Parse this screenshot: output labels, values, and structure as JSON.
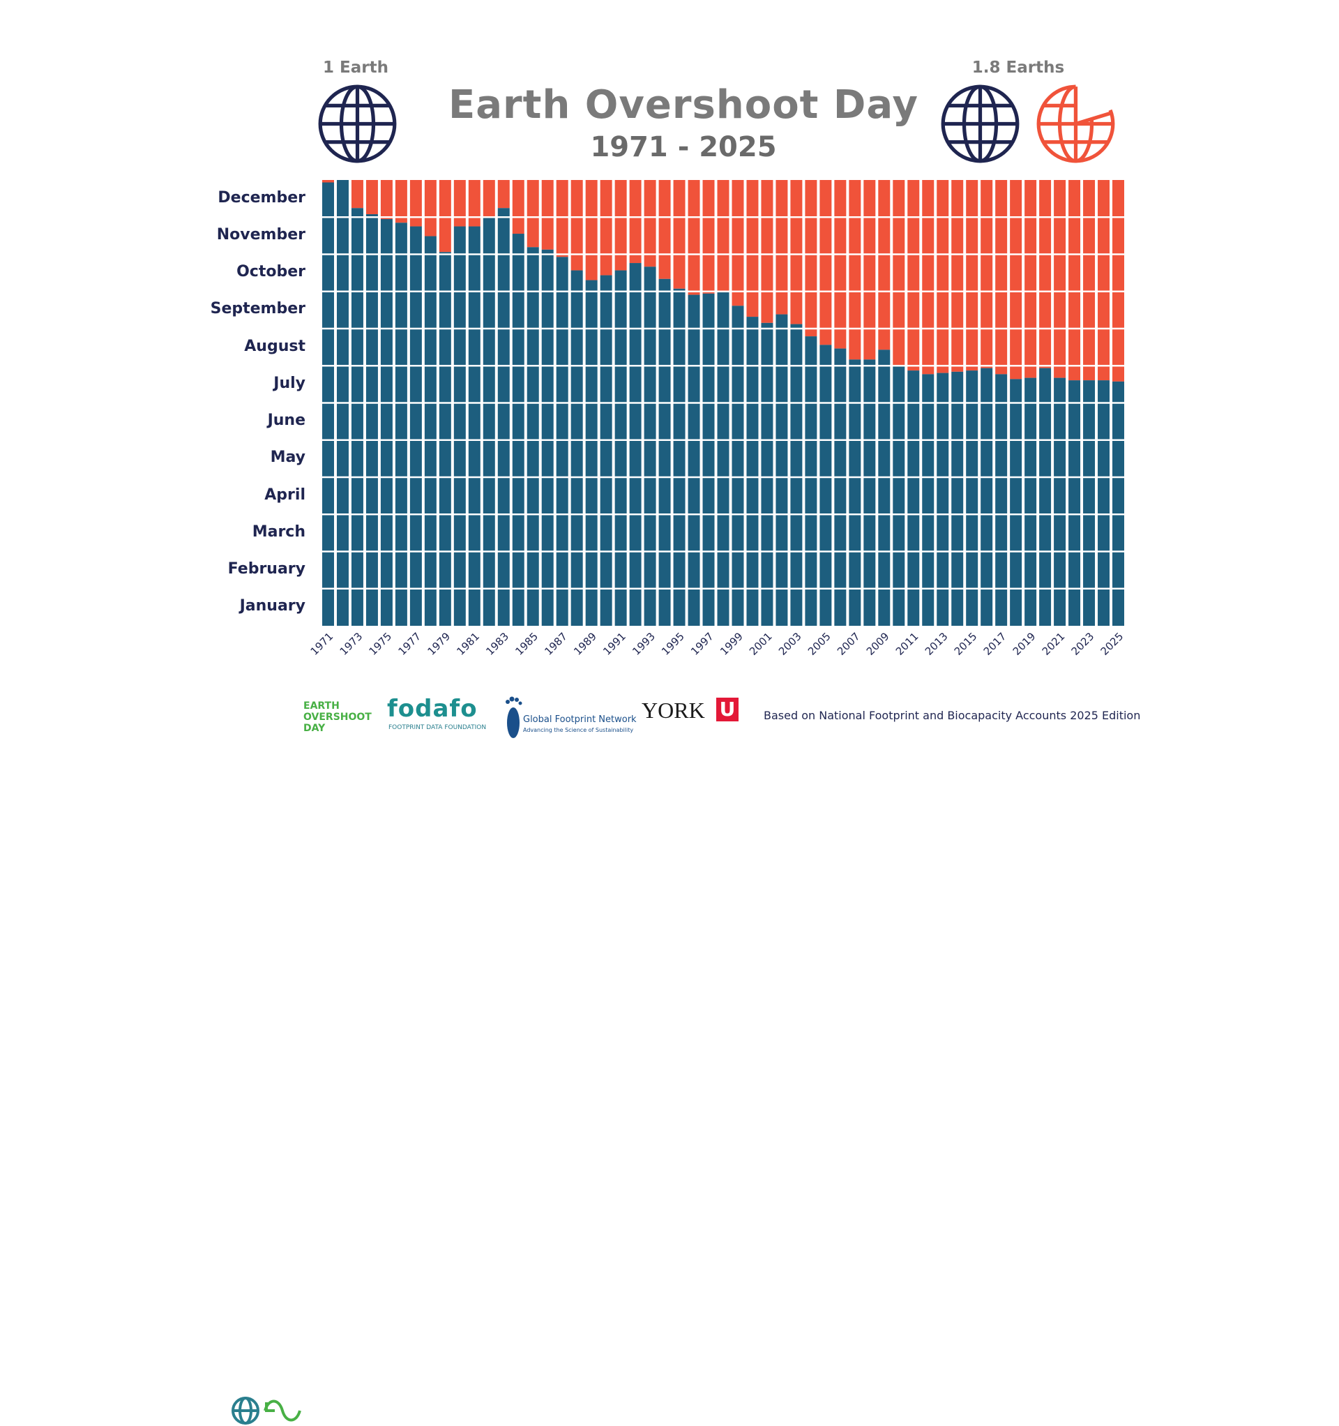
{
  "header": {
    "title": "Earth Overshoot Day",
    "subtitle": "1971 - 2025",
    "left_label": "1 Earth",
    "right_label": "1.8 Earths"
  },
  "colors": {
    "before": "#1d5e7e",
    "after": "#f0533a",
    "months": "#1f2550",
    "globe_navy": "#1f2550",
    "globe_orange": "#f0533a",
    "title_gray": "#7a7a7a"
  },
  "icons": [
    "globe-icon",
    "partial-globe-icon",
    "footprint-icon"
  ],
  "chart_data": {
    "type": "bar",
    "stacked": true,
    "title": "Earth Overshoot Day",
    "subtitle": "1971 - 2025",
    "y_axis_labels": [
      "January",
      "February",
      "March",
      "April",
      "May",
      "June",
      "July",
      "August",
      "September",
      "October",
      "November",
      "December"
    ],
    "ylim_day_of_year": [
      0,
      365
    ],
    "grid": true,
    "x_tick_labels_shown": [
      "1971",
      "1973",
      "1975",
      "1977",
      "1979",
      "1981",
      "1983",
      "1985",
      "1987",
      "1989",
      "1991",
      "1993",
      "1995",
      "1997",
      "1999",
      "2001",
      "2003",
      "2005",
      "2007",
      "2009",
      "2011",
      "2013",
      "2015",
      "2017",
      "2019",
      "2021",
      "2023",
      "2025"
    ],
    "years": [
      1971,
      1972,
      1973,
      1974,
      1975,
      1976,
      1977,
      1978,
      1979,
      1980,
      1981,
      1982,
      1983,
      1984,
      1985,
      1986,
      1987,
      1988,
      1989,
      1990,
      1991,
      1992,
      1993,
      1994,
      1995,
      1996,
      1997,
      1998,
      1999,
      2000,
      2001,
      2002,
      2003,
      2004,
      2005,
      2006,
      2007,
      2008,
      2009,
      2010,
      2011,
      2012,
      2013,
      2014,
      2015,
      2016,
      2017,
      2018,
      2019,
      2020,
      2021,
      2022,
      2023,
      2024,
      2025
    ],
    "overshoot_day_of_year": [
      363,
      365,
      342,
      337,
      333,
      330,
      327,
      319,
      306,
      327,
      327,
      335,
      342,
      321,
      310,
      308,
      302,
      291,
      283,
      287,
      291,
      297,
      294,
      284,
      276,
      271,
      272,
      273,
      262,
      253,
      248,
      255,
      247,
      237,
      230,
      227,
      218,
      218,
      226,
      213,
      209,
      206,
      207,
      208,
      209,
      211,
      206,
      202,
      203,
      211,
      203,
      201,
      201,
      201,
      200
    ]
  },
  "footer": {
    "logo1_line1": "EARTH",
    "logo1_line2": "OVERSHOOT",
    "logo1_line3": "DAY",
    "logo2_name": "fodafo",
    "logo2_tag": "FOOTPRINT DATA FOUNDATION",
    "logo3_name": "Global Footprint Network",
    "logo3_tag": "Advancing the Science of Sustainability",
    "logo4_name": "YORK",
    "logo4_mark": "U",
    "source": "Based on National Footprint and Biocapacity Accounts 2025 Edition"
  }
}
